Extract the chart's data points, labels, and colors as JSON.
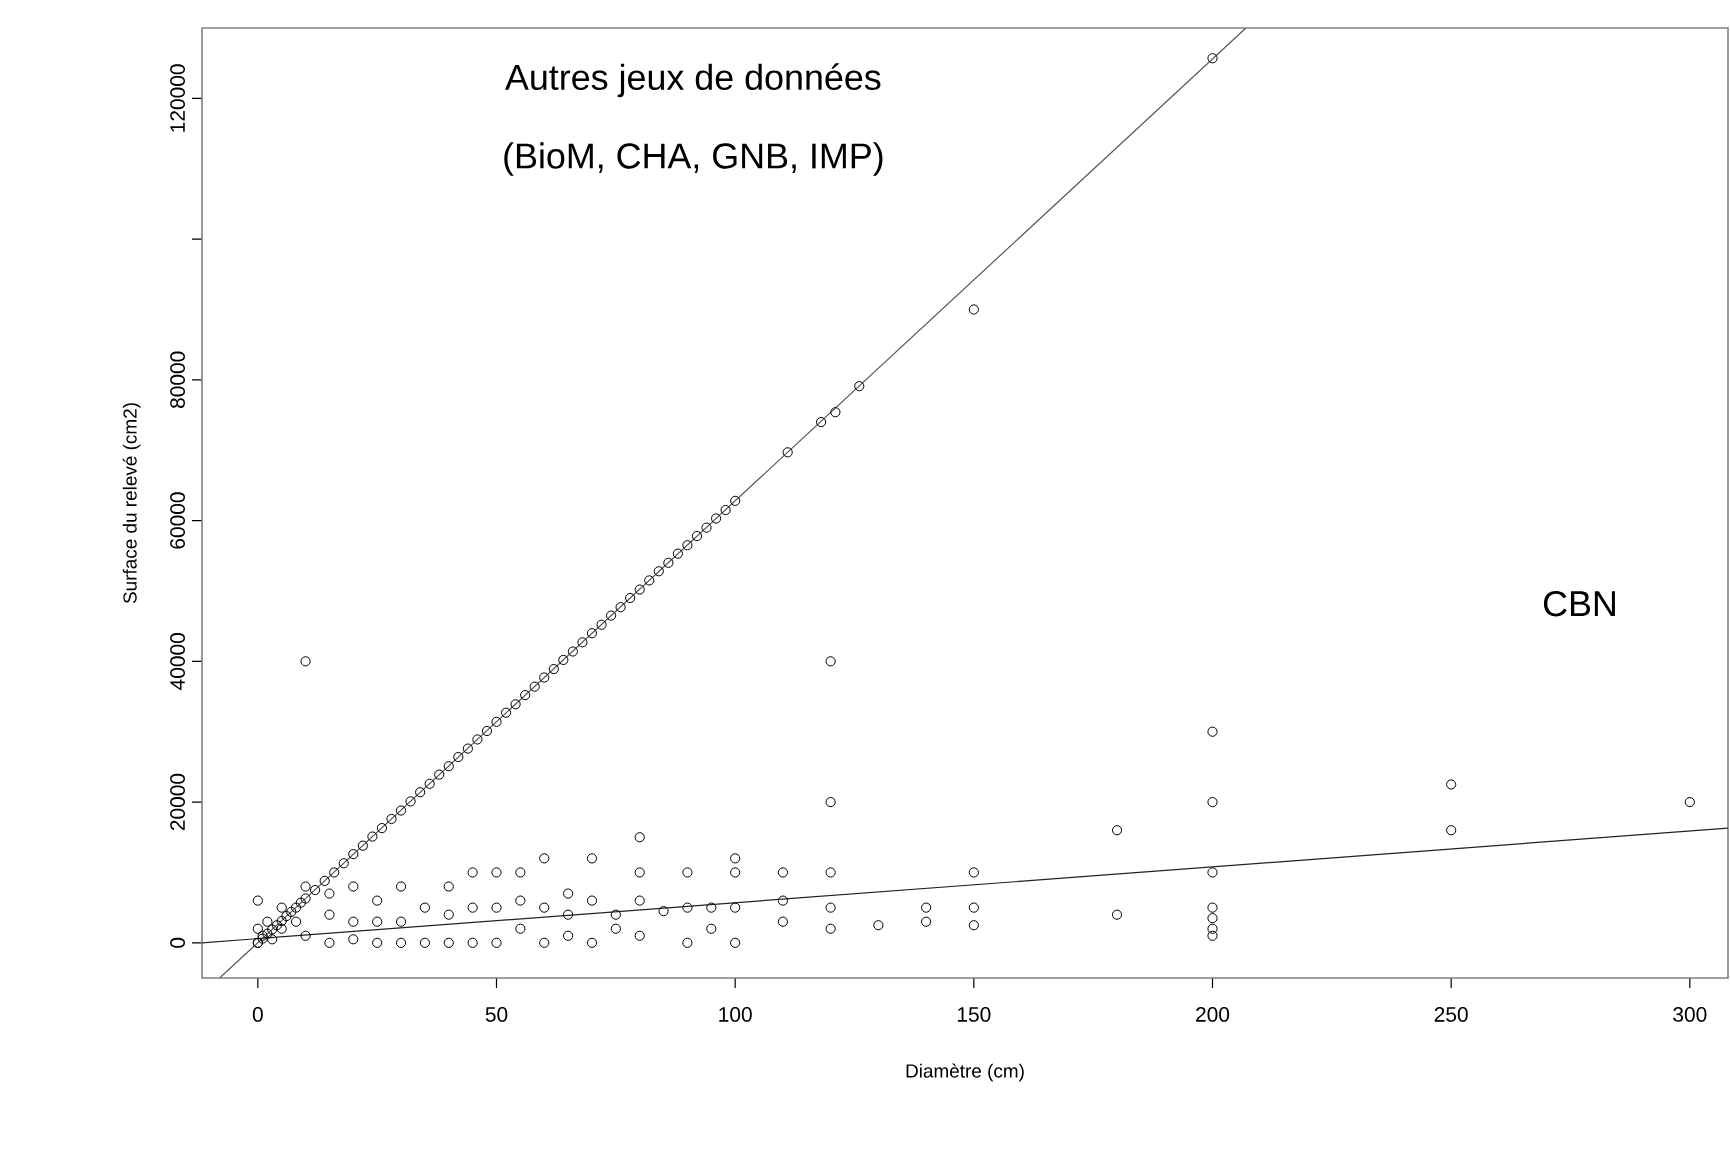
{
  "chart_data": {
    "type": "scatter",
    "xlabel": "Diamètre (cm)",
    "ylabel": "Surface du relevé (cm2)",
    "xlim": [
      -11.7,
      308
    ],
    "ylim": [
      -5000,
      130000
    ],
    "xticks": [
      0,
      50,
      100,
      150,
      200,
      250,
      300
    ],
    "yticks": [
      0,
      20000,
      40000,
      60000,
      80000,
      {
        "value": 100000,
        "label": null
      },
      120000
    ],
    "grid": false,
    "annotations": [
      "Autres jeux de données",
      "(BioM, CHA, GNB, IMP)",
      "CBN"
    ],
    "series": [
      {
        "color": "#000000",
        "marker": "circle",
        "x": [
          0,
          1,
          2,
          3,
          4,
          5,
          6,
          7,
          8,
          9,
          10,
          12,
          14,
          16,
          18,
          20,
          22,
          24,
          26,
          28,
          30,
          32,
          34,
          36,
          38,
          40,
          42,
          44,
          46,
          48,
          50,
          52,
          54,
          56,
          58,
          60,
          62,
          64,
          66,
          68,
          70,
          72,
          74,
          76,
          78,
          80,
          82,
          84,
          86,
          88,
          90,
          92,
          94,
          96,
          98,
          100,
          111,
          118,
          121,
          126,
          150,
          200,
          0,
          0,
          0,
          1,
          2,
          3,
          5,
          5,
          8,
          10,
          10,
          10,
          15,
          15,
          15,
          20,
          20,
          20,
          25,
          25,
          25,
          30,
          30,
          30,
          35,
          35,
          40,
          40,
          40,
          45,
          45,
          45,
          50,
          50,
          50,
          55,
          55,
          55,
          60,
          60,
          60,
          65,
          65,
          65,
          70,
          70,
          70,
          75,
          75,
          80,
          80,
          80,
          80,
          85,
          90,
          90,
          90,
          95,
          95,
          100,
          100,
          100,
          100,
          110,
          110,
          110,
          120,
          120,
          120,
          120,
          120,
          130,
          140,
          140,
          150,
          150,
          150,
          180,
          180,
          200,
          200,
          200,
          200,
          200,
          200,
          200,
          250,
          250,
          300
        ],
        "values": [
          0,
          600,
          1300,
          1900,
          2500,
          3100,
          3800,
          4400,
          5000,
          5700,
          6300,
          7500,
          8800,
          10000,
          11300,
          12600,
          13800,
          15100,
          16300,
          17600,
          18800,
          20100,
          21400,
          22600,
          23900,
          25100,
          26400,
          27600,
          28900,
          30100,
          31400,
          32700,
          33900,
          35200,
          36400,
          37700,
          38900,
          40200,
          41400,
          42700,
          44000,
          45200,
          46500,
          47700,
          49000,
          50200,
          51500,
          52800,
          54000,
          55300,
          56500,
          57800,
          59000,
          60300,
          61500,
          62800,
          69700,
          74000,
          75400,
          79100,
          90000,
          125700,
          0,
          2000,
          6000,
          1000,
          3000,
          500,
          2000,
          5000,
          3000,
          1000,
          8000,
          40000,
          0,
          4000,
          7000,
          500,
          3000,
          8000,
          0,
          3000,
          6000,
          0,
          3000,
          8000,
          0,
          5000,
          0,
          4000,
          8000,
          0,
          5000,
          10000,
          0,
          5000,
          10000,
          2000,
          6000,
          10000,
          0,
          5000,
          12000,
          1000,
          4000,
          7000,
          0,
          6000,
          12000,
          2000,
          4000,
          1000,
          6000,
          10000,
          15000,
          4500,
          0,
          5000,
          10000,
          2000,
          5000,
          0,
          5000,
          10000,
          12000,
          3000,
          6000,
          10000,
          2000,
          5000,
          10000,
          20000,
          40000,
          2500,
          3000,
          5000,
          2500,
          5000,
          10000,
          4000,
          16000,
          1000,
          2000,
          3500,
          5000,
          10000,
          20000,
          30000,
          16000,
          22500,
          20000
        ]
      },
      {
        "type": "line",
        "color": "#555555",
        "line_style": "solid",
        "x": [
          -8,
          207
        ],
        "values": [
          -5000,
          130000
        ]
      },
      {
        "type": "line",
        "color": "#222222",
        "line_style": "solid",
        "x": [
          -11.7,
          308
        ],
        "values": [
          0,
          16300
        ]
      }
    ]
  }
}
